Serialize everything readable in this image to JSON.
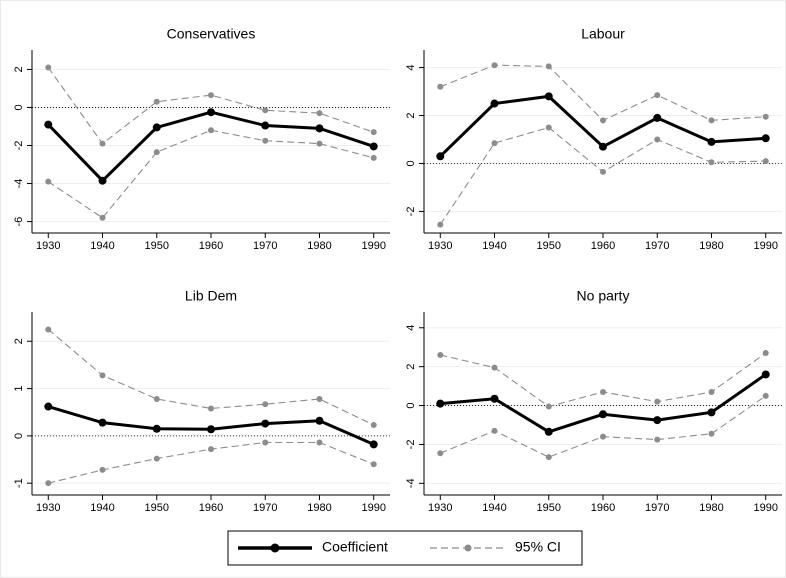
{
  "chart_data": [
    {
      "type": "line",
      "title": "Conservatives",
      "x": [
        1930,
        1940,
        1950,
        1960,
        1970,
        1980,
        1990
      ],
      "xlim": [
        1927,
        1993
      ],
      "xticks": [
        1930,
        1940,
        1950,
        1960,
        1970,
        1980,
        1990
      ],
      "ylim": [
        -6.6,
        2.6
      ],
      "yticks": [
        -6,
        -4,
        -2,
        0,
        2
      ],
      "hline": 0,
      "grid": true,
      "series": [
        {
          "name": "Coefficient",
          "color": "#000000",
          "line_style": "solid",
          "values": [
            -0.9,
            -3.85,
            -1.05,
            -0.25,
            -0.95,
            -1.1,
            -2.05
          ]
        },
        {
          "name": "95% CI",
          "color": "#8c8c8c",
          "line_style": "dashed",
          "values": [
            2.1,
            -1.9,
            0.3,
            0.65,
            -0.15,
            -0.3,
            -1.3
          ]
        },
        {
          "name": "95% CI",
          "color": "#8c8c8c",
          "line_style": "dashed",
          "values": [
            -3.9,
            -5.8,
            -2.35,
            -1.2,
            -1.75,
            -1.9,
            -2.65
          ]
        }
      ]
    },
    {
      "type": "line",
      "title": "Labour",
      "x": [
        1930,
        1940,
        1950,
        1960,
        1970,
        1980,
        1990
      ],
      "xlim": [
        1927,
        1993
      ],
      "xticks": [
        1930,
        1940,
        1950,
        1960,
        1970,
        1980,
        1990
      ],
      "ylim": [
        -2.9,
        4.4
      ],
      "yticks": [
        -2,
        0,
        2,
        4
      ],
      "hline": 0,
      "grid": true,
      "series": [
        {
          "name": "Coefficient",
          "color": "#000000",
          "line_style": "solid",
          "values": [
            0.3,
            2.5,
            2.8,
            0.7,
            1.9,
            0.9,
            1.05
          ]
        },
        {
          "name": "95% CI",
          "color": "#8c8c8c",
          "line_style": "dashed",
          "values": [
            3.2,
            4.1,
            4.05,
            1.8,
            2.85,
            1.8,
            1.95
          ]
        },
        {
          "name": "95% CI",
          "color": "#8c8c8c",
          "line_style": "dashed",
          "values": [
            -2.55,
            0.85,
            1.5,
            -0.35,
            1.0,
            0.05,
            0.1
          ]
        }
      ]
    },
    {
      "type": "line",
      "title": "Lib Dem",
      "x": [
        1930,
        1940,
        1950,
        1960,
        1970,
        1980,
        1990
      ],
      "xlim": [
        1927,
        1993
      ],
      "xticks": [
        1930,
        1940,
        1950,
        1960,
        1970,
        1980,
        1990
      ],
      "ylim": [
        -1.25,
        2.45
      ],
      "yticks": [
        -1,
        0,
        1,
        2
      ],
      "hline": 0,
      "grid": true,
      "series": [
        {
          "name": "Coefficient",
          "color": "#000000",
          "line_style": "solid",
          "values": [
            0.62,
            0.28,
            0.15,
            0.14,
            0.26,
            0.32,
            -0.18
          ]
        },
        {
          "name": "95% CI",
          "color": "#8c8c8c",
          "line_style": "dashed",
          "values": [
            2.25,
            1.28,
            0.78,
            0.58,
            0.67,
            0.78,
            0.23
          ]
        },
        {
          "name": "95% CI",
          "color": "#8c8c8c",
          "line_style": "dashed",
          "values": [
            -1.0,
            -0.72,
            -0.48,
            -0.28,
            -0.14,
            -0.14,
            -0.6
          ]
        }
      ]
    },
    {
      "type": "line",
      "title": "No party",
      "x": [
        1930,
        1940,
        1950,
        1960,
        1970,
        1980,
        1990
      ],
      "xlim": [
        1927,
        1993
      ],
      "xticks": [
        1930,
        1940,
        1950,
        1960,
        1970,
        1980,
        1990
      ],
      "ylim": [
        -4.6,
        4.4
      ],
      "yticks": [
        -4,
        -2,
        0,
        2,
        4
      ],
      "hline": 0,
      "grid": true,
      "series": [
        {
          "name": "Coefficient",
          "color": "#000000",
          "line_style": "solid",
          "values": [
            0.1,
            0.35,
            -1.35,
            -0.45,
            -0.75,
            -0.35,
            1.6
          ]
        },
        {
          "name": "95% CI",
          "color": "#8c8c8c",
          "line_style": "dashed",
          "values": [
            2.6,
            1.95,
            -0.05,
            0.7,
            0.2,
            0.7,
            2.7
          ]
        },
        {
          "name": "95% CI",
          "color": "#8c8c8c",
          "line_style": "dashed",
          "values": [
            -2.45,
            -1.3,
            -2.65,
            -1.6,
            -1.75,
            -1.45,
            0.5
          ]
        }
      ]
    }
  ]
}
